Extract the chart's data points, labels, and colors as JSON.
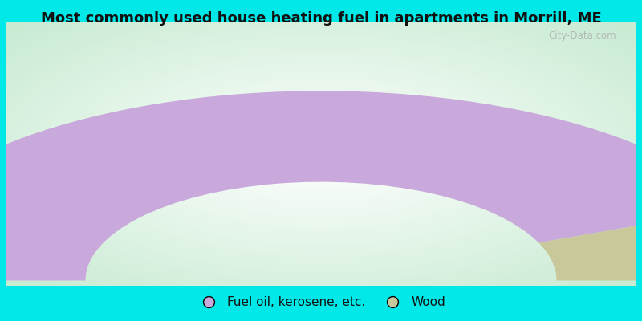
{
  "title": "Most commonly used house heating fuel in apartments in Morrill, ME",
  "title_fontsize": 13,
  "slices": [
    {
      "label": "Fuel oil, kerosene, etc.",
      "value": 87.5,
      "color": "#c9a8dc"
    },
    {
      "label": "Wood",
      "value": 12.5,
      "color": "#c8c89a"
    }
  ],
  "bg_cyan": "#00e8e8",
  "legend_fontsize": 11,
  "watermark": "City-Data.com"
}
